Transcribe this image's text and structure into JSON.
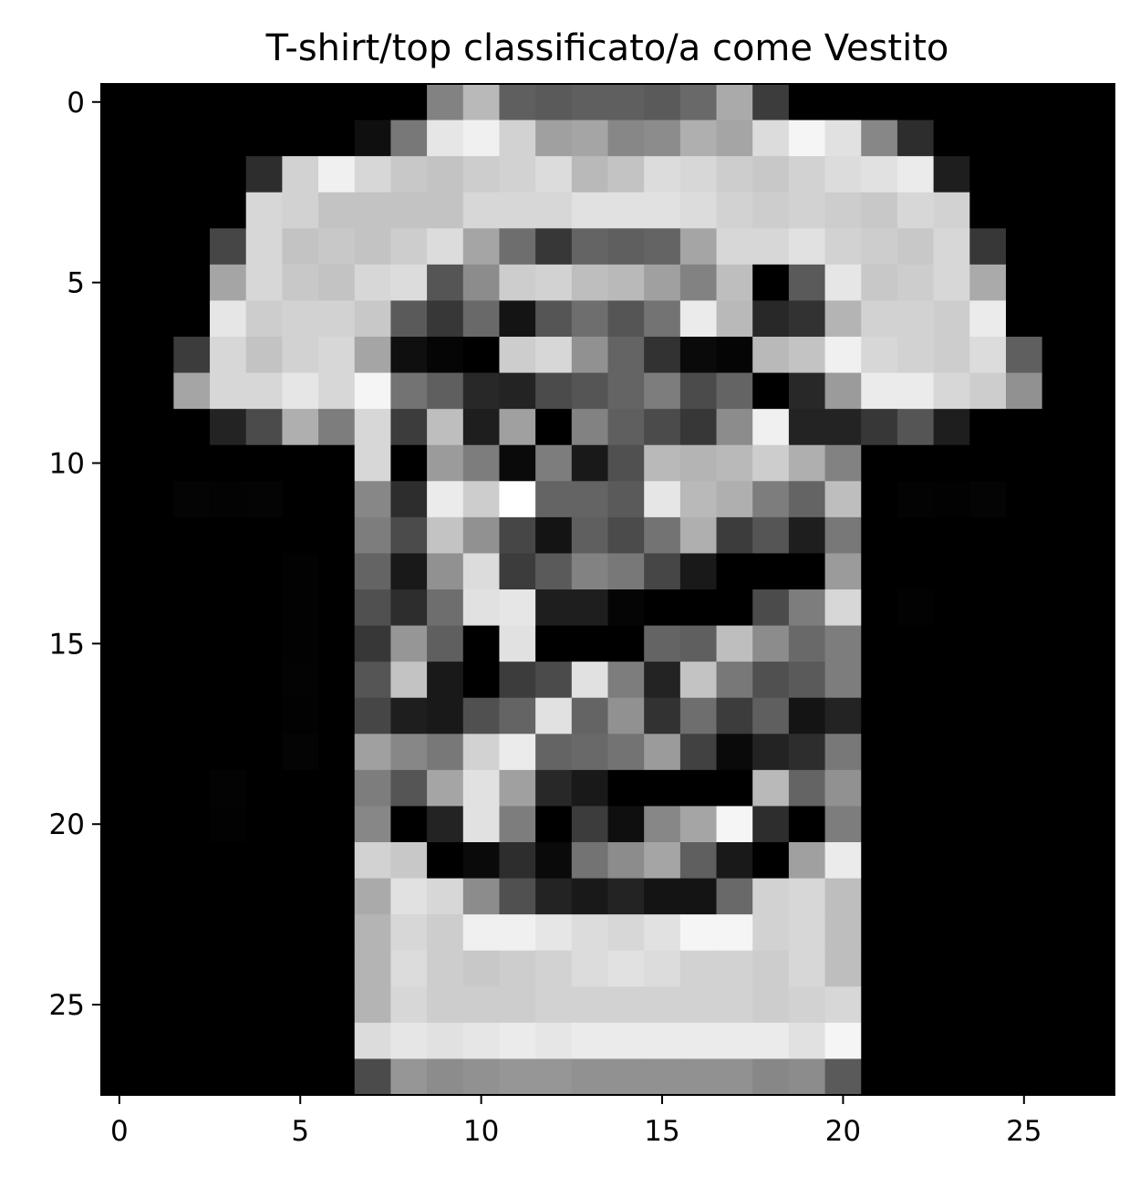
{
  "chart_data": {
    "type": "heatmap",
    "title": "T-shirt/top classificato/a come Vestito",
    "colormap": "gray",
    "value_range": [
      0,
      255
    ],
    "xlim": [
      -0.5,
      27.5
    ],
    "ylim": [
      27.5,
      -0.5
    ],
    "x_ticks": [
      0,
      5,
      10,
      15,
      20,
      25
    ],
    "y_ticks": [
      0,
      5,
      10,
      15,
      20,
      25
    ],
    "x_tick_labels": [
      "0",
      "5",
      "10",
      "15",
      "20",
      "25"
    ],
    "y_tick_labels": [
      "0",
      "5",
      "10",
      "15",
      "20",
      "25"
    ],
    "xlabel": "",
    "ylabel": "",
    "grid": false,
    "rows": [
      [
        0,
        0,
        0,
        0,
        0,
        0,
        0,
        0,
        0,
        130,
        185,
        95,
        90,
        95,
        95,
        90,
        105,
        170,
        60,
        0,
        0,
        0,
        0,
        0,
        0,
        0,
        0,
        0
      ],
      [
        0,
        0,
        0,
        0,
        0,
        0,
        0,
        15,
        120,
        230,
        240,
        210,
        160,
        165,
        135,
        140,
        175,
        165,
        220,
        245,
        225,
        135,
        45,
        0,
        0,
        0,
        0,
        0
      ],
      [
        0,
        0,
        0,
        0,
        45,
        210,
        240,
        215,
        200,
        195,
        205,
        210,
        220,
        185,
        195,
        220,
        215,
        205,
        200,
        210,
        220,
        225,
        235,
        30,
        0,
        0,
        0,
        0
      ],
      [
        0,
        0,
        0,
        0,
        215,
        210,
        195,
        195,
        195,
        195,
        215,
        215,
        215,
        225,
        225,
        225,
        220,
        210,
        205,
        210,
        205,
        200,
        215,
        210,
        0,
        0,
        0,
        0
      ],
      [
        0,
        0,
        0,
        70,
        215,
        195,
        200,
        195,
        205,
        220,
        165,
        110,
        55,
        100,
        95,
        100,
        165,
        215,
        215,
        225,
        210,
        205,
        200,
        215,
        55,
        0,
        0,
        0
      ],
      [
        0,
        0,
        0,
        165,
        215,
        200,
        195,
        215,
        220,
        85,
        140,
        205,
        210,
        190,
        185,
        160,
        130,
        190,
        0,
        90,
        230,
        200,
        205,
        215,
        170,
        0,
        0,
        0
      ],
      [
        0,
        0,
        0,
        230,
        205,
        210,
        210,
        200,
        90,
        55,
        105,
        20,
        85,
        110,
        85,
        115,
        235,
        185,
        40,
        50,
        180,
        210,
        210,
        205,
        235,
        0,
        0,
        0
      ],
      [
        0,
        0,
        60,
        215,
        195,
        210,
        215,
        165,
        15,
        5,
        0,
        205,
        215,
        145,
        100,
        50,
        10,
        5,
        185,
        195,
        240,
        215,
        210,
        205,
        220,
        95,
        0,
        0
      ],
      [
        0,
        0,
        165,
        215,
        215,
        230,
        215,
        245,
        115,
        95,
        40,
        35,
        75,
        85,
        100,
        125,
        75,
        100,
        0,
        40,
        155,
        235,
        235,
        215,
        205,
        145,
        0,
        0
      ],
      [
        0,
        0,
        0,
        35,
        75,
        175,
        125,
        215,
        60,
        190,
        30,
        160,
        0,
        130,
        95,
        75,
        55,
        140,
        240,
        35,
        35,
        55,
        85,
        30,
        0,
        0,
        0,
        0
      ],
      [
        0,
        0,
        0,
        0,
        0,
        0,
        0,
        215,
        0,
        155,
        125,
        10,
        125,
        25,
        80,
        185,
        180,
        185,
        205,
        175,
        130,
        0,
        0,
        0,
        0,
        0,
        0,
        0
      ],
      [
        0,
        0,
        4,
        3,
        4,
        0,
        0,
        135,
        45,
        235,
        205,
        255,
        100,
        100,
        90,
        230,
        185,
        175,
        125,
        100,
        190,
        0,
        3,
        2,
        4,
        0,
        0,
        0
      ],
      [
        0,
        0,
        0,
        0,
        0,
        0,
        0,
        125,
        75,
        195,
        145,
        70,
        20,
        95,
        75,
        115,
        175,
        60,
        85,
        30,
        120,
        0,
        0,
        0,
        0,
        0,
        0,
        0
      ],
      [
        0,
        0,
        0,
        0,
        0,
        2,
        0,
        100,
        25,
        145,
        220,
        60,
        90,
        130,
        120,
        70,
        25,
        0,
        0,
        0,
        155,
        0,
        0,
        0,
        0,
        0,
        0,
        0
      ],
      [
        0,
        0,
        0,
        0,
        0,
        2,
        0,
        80,
        45,
        110,
        225,
        230,
        30,
        30,
        5,
        0,
        0,
        0,
        75,
        125,
        215,
        0,
        2,
        0,
        0,
        0,
        0,
        0
      ],
      [
        0,
        0,
        0,
        0,
        0,
        2,
        0,
        55,
        150,
        95,
        0,
        225,
        0,
        0,
        0,
        100,
        95,
        190,
        140,
        105,
        125,
        0,
        0,
        0,
        0,
        0,
        0,
        0
      ],
      [
        0,
        0,
        0,
        0,
        0,
        3,
        0,
        85,
        195,
        25,
        0,
        60,
        75,
        225,
        125,
        35,
        195,
        120,
        80,
        90,
        125,
        0,
        0,
        0,
        0,
        0,
        0,
        0
      ],
      [
        0,
        0,
        0,
        0,
        0,
        2,
        0,
        70,
        30,
        25,
        80,
        100,
        225,
        100,
        145,
        50,
        110,
        60,
        95,
        20,
        35,
        0,
        0,
        0,
        0,
        0,
        0,
        0
      ],
      [
        0,
        0,
        0,
        0,
        0,
        4,
        0,
        160,
        135,
        120,
        210,
        235,
        100,
        105,
        115,
        155,
        65,
        10,
        35,
        45,
        120,
        0,
        0,
        0,
        0,
        0,
        0,
        0
      ],
      [
        0,
        0,
        0,
        3,
        0,
        0,
        0,
        125,
        85,
        165,
        225,
        160,
        40,
        25,
        0,
        0,
        0,
        0,
        185,
        100,
        145,
        0,
        0,
        0,
        0,
        0,
        0,
        0
      ],
      [
        0,
        0,
        0,
        2,
        0,
        0,
        0,
        135,
        0,
        35,
        225,
        125,
        0,
        60,
        15,
        135,
        165,
        245,
        45,
        0,
        125,
        0,
        0,
        0,
        0,
        0,
        0,
        0
      ],
      [
        0,
        0,
        0,
        0,
        0,
        0,
        0,
        210,
        200,
        0,
        10,
        45,
        10,
        115,
        140,
        165,
        95,
        25,
        0,
        160,
        235,
        0,
        0,
        0,
        0,
        0,
        0,
        0
      ],
      [
        0,
        0,
        0,
        0,
        0,
        0,
        0,
        170,
        225,
        215,
        140,
        80,
        35,
        25,
        35,
        20,
        20,
        105,
        210,
        215,
        190,
        0,
        0,
        0,
        0,
        0,
        0,
        0
      ],
      [
        0,
        0,
        0,
        0,
        0,
        0,
        0,
        180,
        215,
        205,
        240,
        240,
        230,
        220,
        215,
        225,
        245,
        245,
        210,
        215,
        190,
        0,
        0,
        0,
        0,
        0,
        0,
        0
      ],
      [
        0,
        0,
        0,
        0,
        0,
        0,
        0,
        180,
        220,
        205,
        200,
        205,
        210,
        220,
        225,
        220,
        210,
        210,
        205,
        215,
        190,
        0,
        0,
        0,
        0,
        0,
        0,
        0
      ],
      [
        0,
        0,
        0,
        0,
        0,
        0,
        0,
        180,
        215,
        205,
        205,
        205,
        210,
        210,
        210,
        210,
        210,
        210,
        205,
        210,
        215,
        0,
        0,
        0,
        0,
        0,
        0,
        0
      ],
      [
        0,
        0,
        0,
        0,
        0,
        0,
        0,
        220,
        230,
        225,
        230,
        235,
        230,
        235,
        235,
        235,
        235,
        235,
        235,
        225,
        245,
        0,
        0,
        0,
        0,
        0,
        0,
        0
      ],
      [
        0,
        0,
        0,
        0,
        0,
        0,
        0,
        75,
        150,
        140,
        145,
        150,
        150,
        145,
        145,
        145,
        145,
        145,
        135,
        140,
        90,
        0,
        0,
        0,
        0,
        0,
        0,
        0
      ]
    ]
  }
}
